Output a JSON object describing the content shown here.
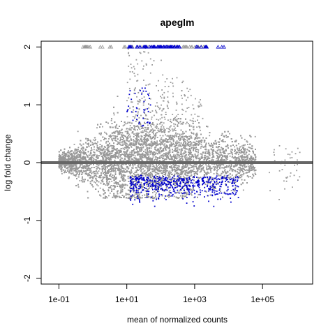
{
  "chart_data": {
    "type": "scatter",
    "title": "apeglm",
    "xlabel": "mean of normalized counts",
    "ylabel": "log fold change",
    "x_scale": "log10",
    "xlim": [
      0.03,
      3000000
    ],
    "ylim": [
      -2.1,
      2.1
    ],
    "x_ticks": [
      0.1,
      10,
      1000,
      100000
    ],
    "x_tick_labels": [
      "1e-01",
      "1e+01",
      "1e+03",
      "1e+05"
    ],
    "y_ticks": [
      -2,
      -1,
      0,
      1,
      2
    ],
    "y_tick_labels": [
      "-2",
      "-1",
      "0",
      "1",
      "2"
    ],
    "reference_line": {
      "y": 0,
      "color": "#666666"
    },
    "clip_limit": 2,
    "series": [
      {
        "color": "#999999"
      },
      {
        "color": "#0000cc"
      }
    ],
    "grid": false,
    "legend": "none"
  }
}
